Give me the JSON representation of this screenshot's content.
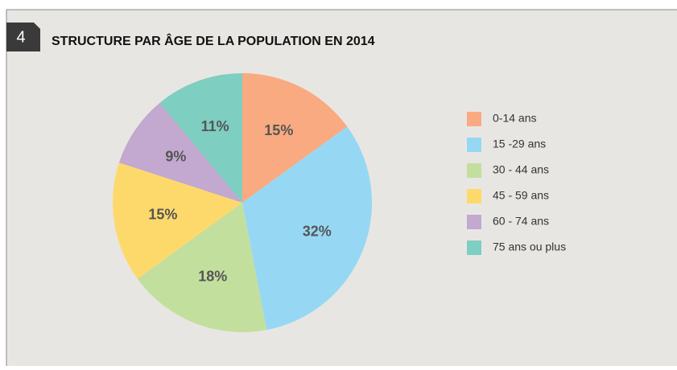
{
  "figure_number": "4",
  "chart_data": {
    "type": "pie",
    "title": "STRUCTURE PAR ÂGE DE LA POPULATION EN 2014",
    "categories": [
      "0-14 ans",
      "15 -29 ans",
      "30 - 44 ans",
      "45 - 59 ans",
      "60 - 74 ans",
      "75 ans ou plus"
    ],
    "values": [
      15,
      32,
      18,
      15,
      9,
      11
    ],
    "value_labels": [
      "15%",
      "32%",
      "18%",
      "15%",
      "9%",
      "11%"
    ],
    "colors": [
      "#f9aa80",
      "#96d8f4",
      "#c3df9d",
      "#fdd96c",
      "#c3a8cf",
      "#7ecec1"
    ],
    "legend": "right"
  }
}
